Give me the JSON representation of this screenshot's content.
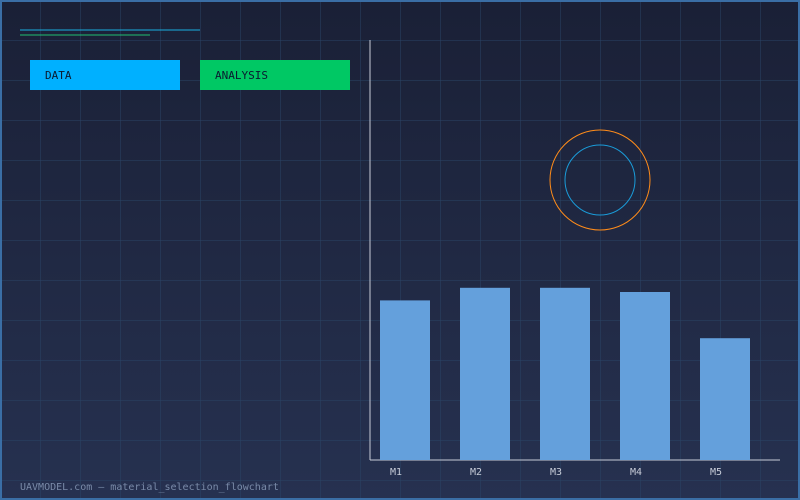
{
  "buttons": [
    "DATA",
    "ANALYSIS"
  ],
  "footer": "UAVMODEL.com — material_selection_flowchart",
  "chart_data": {
    "type": "bar",
    "categories": [
      "M1",
      "M2",
      "M3",
      "M4",
      "M5"
    ],
    "values": [
      38,
      41,
      41,
      40,
      29
    ],
    "color": "#64a0dc",
    "ylim": [
      0,
      100
    ]
  }
}
